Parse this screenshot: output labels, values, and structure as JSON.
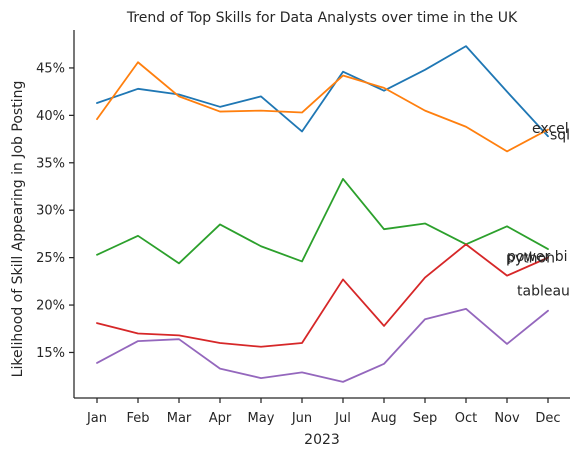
{
  "chart_data": {
    "type": "line",
    "title": "Trend of Top Skills for Data Analysts over time in the UK",
    "xlabel": "2023",
    "ylabel": "Likelihood of Skill Appearing in Job Posting",
    "categories": [
      "Jan",
      "Feb",
      "Mar",
      "Apr",
      "May",
      "Jun",
      "Jul",
      "Aug",
      "Sep",
      "Oct",
      "Nov",
      "Dec"
    ],
    "yticks": [
      15,
      20,
      25,
      30,
      35,
      40,
      45
    ],
    "ytick_labels": [
      "15%",
      "20%",
      "25%",
      "30%",
      "35%",
      "40%",
      "45%"
    ],
    "ylim": [
      10.2,
      49.0
    ],
    "grid": false,
    "legend": "none",
    "series": [
      {
        "name": "excel",
        "color": "#1f77b4",
        "values": [
          41.3,
          42.8,
          42.2,
          40.9,
          42.0,
          38.3,
          44.6,
          42.6,
          44.8,
          47.3,
          42.5,
          37.8
        ]
      },
      {
        "name": "sql",
        "color": "#ff7f0e",
        "values": [
          39.6,
          45.6,
          42.0,
          40.4,
          40.5,
          40.3,
          44.2,
          42.9,
          40.5,
          38.8,
          36.2,
          38.5
        ]
      },
      {
        "name": "power bi",
        "color": "#2ca02c",
        "values": [
          25.3,
          27.3,
          24.4,
          28.5,
          26.2,
          24.6,
          33.3,
          28.0,
          28.6,
          26.4,
          28.3,
          25.9
        ]
      },
      {
        "name": "python",
        "color": "#d62728",
        "values": [
          18.1,
          17.0,
          16.8,
          16.0,
          15.6,
          16.0,
          22.7,
          17.8,
          22.9,
          26.4,
          23.1,
          25.0
        ]
      },
      {
        "name": "tableau",
        "color": "#9467bd",
        "values": [
          13.9,
          16.2,
          16.4,
          13.3,
          12.3,
          12.9,
          11.9,
          13.8,
          18.5,
          19.6,
          15.9,
          19.4
        ]
      }
    ]
  }
}
